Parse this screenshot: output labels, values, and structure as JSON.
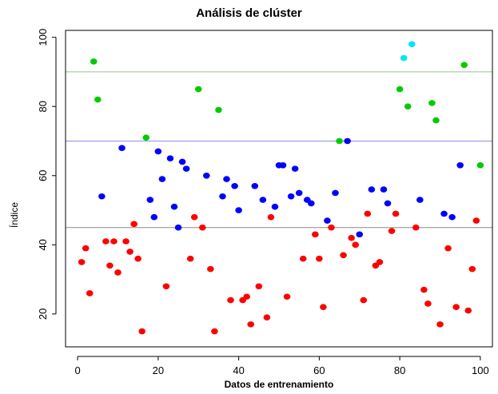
{
  "chart_data": {
    "type": "scatter",
    "title": "Análisis de clúster",
    "xlabel": "Datos de entrenamiento",
    "ylabel": "Índice",
    "xlim": [
      -3,
      103
    ],
    "ylim": [
      10.5,
      102
    ],
    "xticks": [
      0,
      20,
      40,
      60,
      80,
      100
    ],
    "yticks": [
      20,
      40,
      60,
      80,
      100
    ],
    "hlines": [
      {
        "y": 90,
        "color": "#8fc98f"
      },
      {
        "y": 70,
        "color": "#8f8fe0"
      },
      {
        "y": 45,
        "color": "#8a8a8a"
      }
    ],
    "series": [
      {
        "color": "#ff0000",
        "points": [
          [
            1,
            35
          ],
          [
            2,
            39
          ],
          [
            3,
            26
          ],
          [
            7,
            41
          ],
          [
            8,
            34
          ],
          [
            9,
            41
          ],
          [
            10,
            32
          ],
          [
            12,
            41
          ],
          [
            13,
            38
          ],
          [
            14,
            46
          ],
          [
            15,
            36
          ],
          [
            16,
            15
          ],
          [
            22,
            28
          ],
          [
            28,
            36
          ],
          [
            29,
            48
          ],
          [
            31,
            45
          ],
          [
            33,
            33
          ],
          [
            34,
            15
          ],
          [
            38,
            24
          ],
          [
            41,
            24
          ],
          [
            42,
            25
          ],
          [
            43,
            17
          ],
          [
            45,
            28
          ],
          [
            47,
            19
          ],
          [
            48,
            48
          ],
          [
            52,
            25
          ],
          [
            56,
            36
          ],
          [
            59,
            43
          ],
          [
            60,
            36
          ],
          [
            61,
            22
          ],
          [
            63,
            45
          ],
          [
            66,
            37
          ],
          [
            68,
            42
          ],
          [
            69,
            40
          ],
          [
            71,
            24
          ],
          [
            72,
            49
          ],
          [
            74,
            34
          ],
          [
            75,
            35
          ],
          [
            78,
            44
          ],
          [
            79,
            49
          ],
          [
            84,
            45
          ],
          [
            86,
            27
          ],
          [
            87,
            23
          ],
          [
            90,
            17
          ],
          [
            92,
            39
          ],
          [
            94,
            22
          ],
          [
            97,
            21
          ],
          [
            98,
            33
          ],
          [
            99,
            47
          ]
        ]
      },
      {
        "color": "#0000ff",
        "points": [
          [
            6,
            54
          ],
          [
            11,
            68
          ],
          [
            18,
            53
          ],
          [
            19,
            48
          ],
          [
            20,
            67
          ],
          [
            21,
            59
          ],
          [
            23,
            65
          ],
          [
            24,
            51
          ],
          [
            25,
            45
          ],
          [
            26,
            64
          ],
          [
            27,
            62
          ],
          [
            32,
            60
          ],
          [
            36,
            54
          ],
          [
            37,
            59
          ],
          [
            39,
            57
          ],
          [
            40,
            50
          ],
          [
            44,
            57
          ],
          [
            46,
            53
          ],
          [
            49,
            51
          ],
          [
            50,
            63
          ],
          [
            51,
            63
          ],
          [
            53,
            54
          ],
          [
            54,
            62
          ],
          [
            55,
            55
          ],
          [
            57,
            53
          ],
          [
            58,
            52
          ],
          [
            62,
            47
          ],
          [
            64,
            55
          ],
          [
            67,
            70
          ],
          [
            70,
            43
          ],
          [
            73,
            56
          ],
          [
            76,
            56
          ],
          [
            77,
            52
          ],
          [
            85,
            53
          ],
          [
            91,
            49
          ],
          [
            93,
            48
          ],
          [
            95,
            63
          ]
        ]
      },
      {
        "color": "#00cc00",
        "points": [
          [
            4,
            93
          ],
          [
            5,
            82
          ],
          [
            17,
            71
          ],
          [
            30,
            85
          ],
          [
            35,
            79
          ],
          [
            65,
            70
          ],
          [
            80,
            85
          ],
          [
            82,
            80
          ],
          [
            88,
            81
          ],
          [
            89,
            76
          ],
          [
            96,
            92
          ],
          [
            100,
            63
          ]
        ]
      },
      {
        "color": "#00e5ff",
        "points": [
          [
            81,
            94
          ],
          [
            83,
            98
          ]
        ]
      }
    ]
  }
}
